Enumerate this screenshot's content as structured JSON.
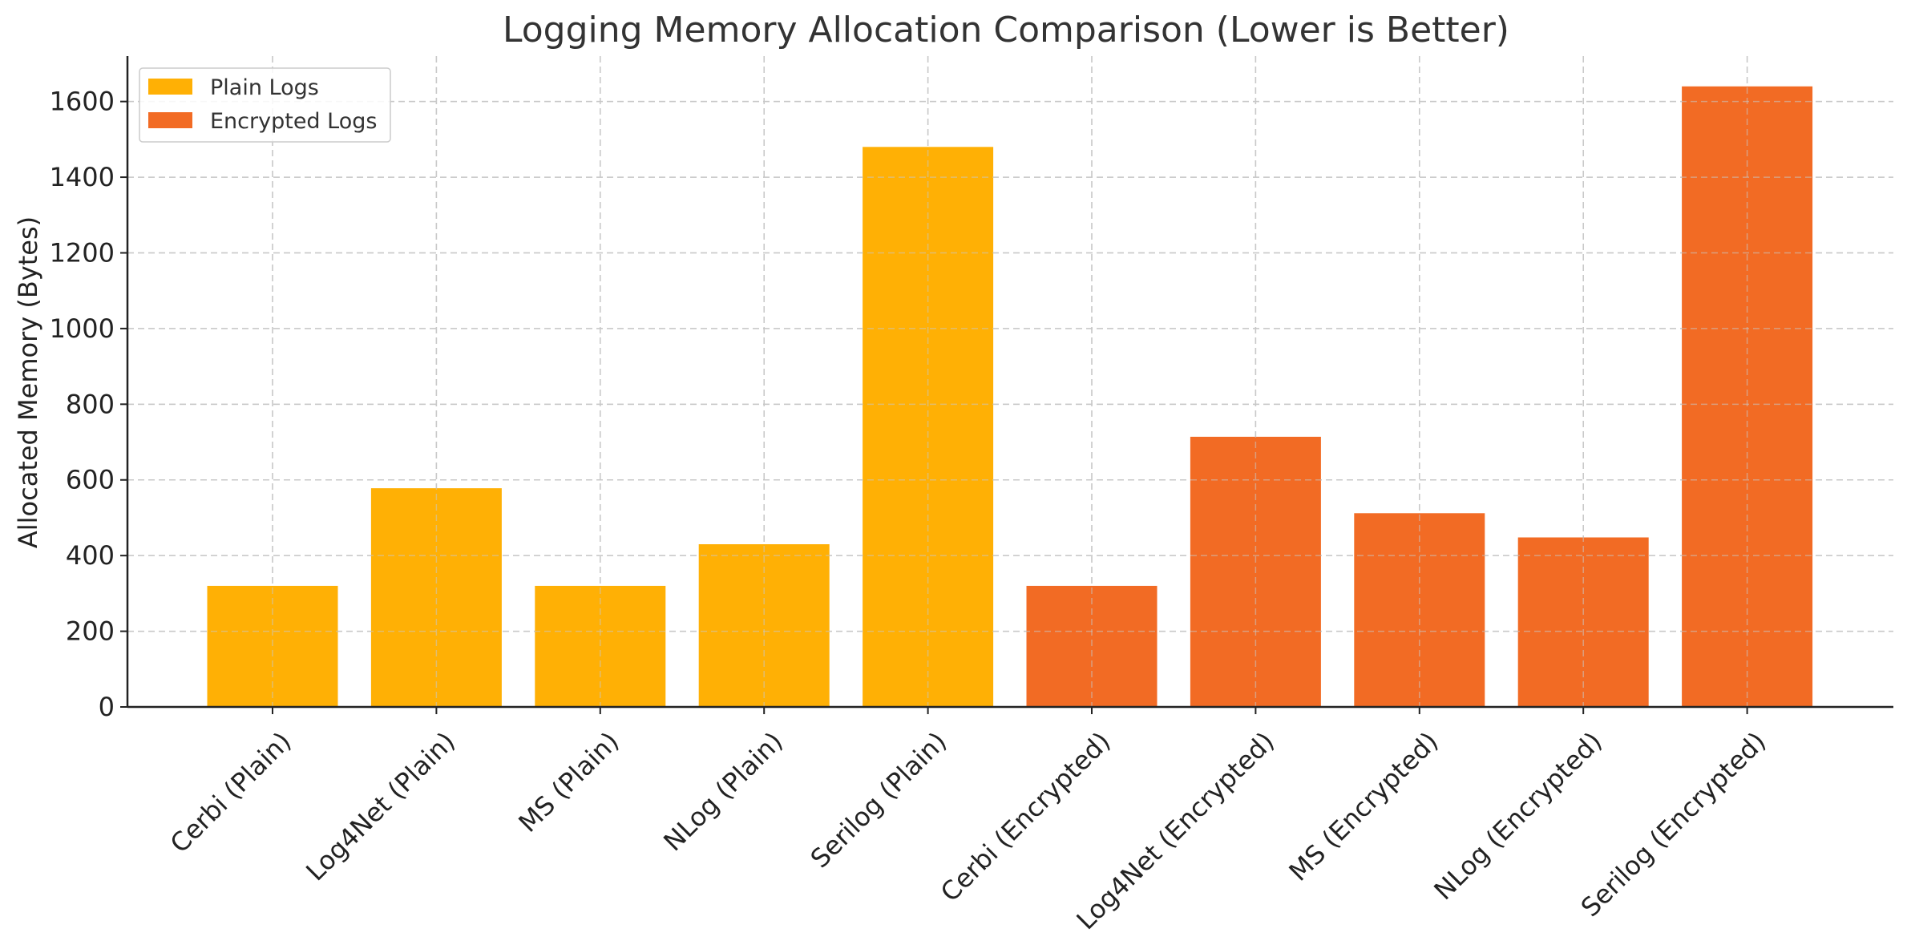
{
  "chart_data": {
    "type": "bar",
    "title": "Logging Memory Allocation Comparison (Lower is Better)",
    "xlabel": "",
    "ylabel": "Allocated Memory (Bytes)",
    "ylim": [
      0,
      1720
    ],
    "yticks": [
      0,
      200,
      400,
      600,
      800,
      1000,
      1200,
      1400,
      1600
    ],
    "grid": true,
    "legend_position": "top-left",
    "categories": [
      "Cerbi (Plain)",
      "Log4Net (Plain)",
      "MS (Plain)",
      "NLog (Plain)",
      "Serilog (Plain)",
      "Cerbi (Encrypted)",
      "Log4Net (Encrypted)",
      "MS (Encrypted)",
      "NLog (Encrypted)",
      "Serilog (Encrypted)"
    ],
    "series": [
      {
        "name": "Plain Logs",
        "color": "#FFB005",
        "values": [
          320,
          578,
          320,
          430,
          1480,
          null,
          null,
          null,
          null,
          null
        ]
      },
      {
        "name": "Encrypted Logs",
        "color": "#F26B24",
        "values": [
          null,
          null,
          null,
          null,
          null,
          320,
          714,
          512,
          448,
          1640
        ]
      }
    ]
  }
}
